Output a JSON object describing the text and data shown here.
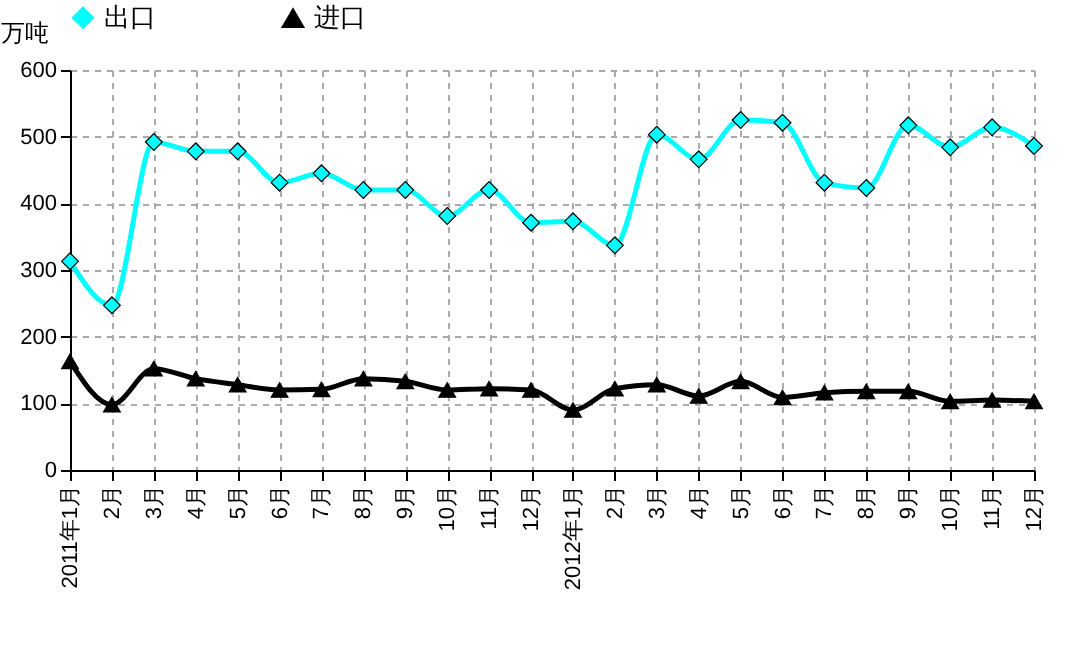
{
  "chart_data": {
    "type": "line",
    "ylabel": "万吨",
    "categories": [
      "2011年1月",
      "2月",
      "3月",
      "4月",
      "5月",
      "6月",
      "7月",
      "8月",
      "9月",
      "10月",
      "11月",
      "12月",
      "2012年1月",
      "2月",
      "3月",
      "4月",
      "5月",
      "6月",
      "7月",
      "8月",
      "9月",
      "10月",
      "11月",
      "12月"
    ],
    "series": [
      {
        "name": "出口",
        "color": "#00ffff",
        "marker": "diamond",
        "values": [
          313,
          247,
          492,
          478,
          478,
          431,
          445,
          420,
          420,
          381,
          420,
          371,
          373,
          337,
          503,
          466,
          525,
          521,
          431,
          423,
          517,
          484,
          514,
          486
        ]
      },
      {
        "name": "进口",
        "color": "#000000",
        "marker": "triangle",
        "values": [
          163,
          98,
          152,
          137,
          128,
          120,
          121,
          137,
          133,
          120,
          122,
          120,
          90,
          122,
          128,
          111,
          133,
          109,
          116,
          118,
          118,
          103,
          105,
          103
        ]
      }
    ],
    "ylim": [
      0,
      600
    ],
    "yticks": [
      0,
      100,
      200,
      300,
      400,
      500,
      600
    ],
    "grid": true,
    "legend": "top"
  }
}
